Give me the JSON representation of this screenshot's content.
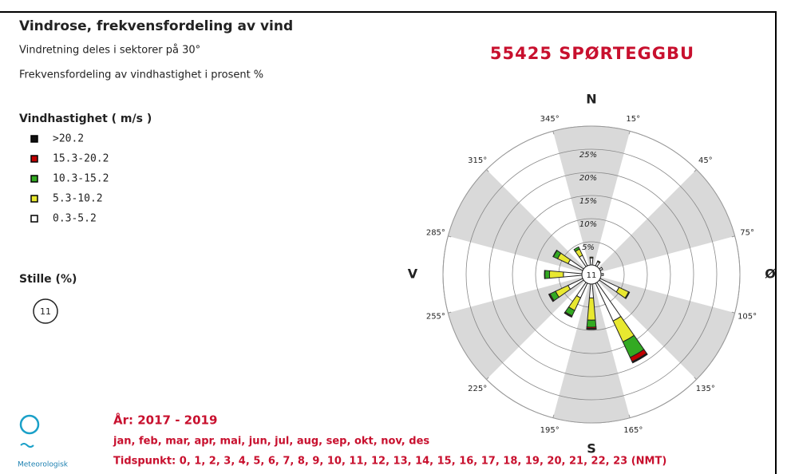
{
  "chart_data": {
    "type": "windrose",
    "title": "Vindrose, frekvensfordeling av vind",
    "subtitle": [
      "Vindretning deles i sektorer på 30°",
      "Frekvensfordeling av vindhastighet i prosent %"
    ],
    "station": "55425 SPØRTEGGBU",
    "legend_title": "Vindhastighet ( m/s )",
    "calm_label": "Stille (%)",
    "calm": 11,
    "period": "År: 2017 - 2019",
    "months": "jan, feb, mar, apr, mai, jun, jul, aug, sep, okt, nov, des",
    "hours": "Tidspunkt: 0, 1, 2, 3, 4, 5, 6, 7, 8, 9, 10, 11, 12, 13, 14, 15, 16, 17, 18, 19, 20, 21, 22, 23 (NMT)",
    "logo_text": "Meteorologisk",
    "x": [
      0,
      30,
      60,
      90,
      120,
      150,
      180,
      210,
      240,
      270,
      300,
      330
    ],
    "series": [
      {
        "name": ">20.2",
        "color": "#111111",
        "values": [
          0,
          0,
          0,
          0,
          0,
          0.3,
          0.2,
          0.1,
          0.1,
          0,
          0,
          0
        ]
      },
      {
        "name": "15.3-20.2",
        "color": "#c00000",
        "values": [
          0,
          0,
          0,
          0,
          0,
          1,
          0.3,
          0.2,
          0.2,
          0.1,
          0.1,
          0
        ]
      },
      {
        "name": "10.3-15.2",
        "color": "#33aa22",
        "values": [
          0,
          0,
          0,
          0,
          0.2,
          3.7,
          1.5,
          1.3,
          1.3,
          1,
          1,
          0.5
        ]
      },
      {
        "name": "5.3-10.2",
        "color": "#e8e830",
        "values": [
          0.2,
          0.2,
          0,
          0,
          2.3,
          5,
          4.8,
          3,
          3,
          3,
          2.5,
          1.5
        ]
      },
      {
        "name": "0.3-5.2",
        "color": "#ffffff",
        "values": [
          1.5,
          1,
          0.6,
          0.5,
          4.5,
          9,
          3,
          3.5,
          3.5,
          4,
          3.5,
          2.5
        ]
      }
    ],
    "rlim": [
      0,
      30
    ],
    "rticks": [
      {
        "value": 5,
        "label": "5%"
      },
      {
        "value": 10,
        "label": "10%"
      },
      {
        "value": 15,
        "label": "15%"
      },
      {
        "value": 20,
        "label": "20%"
      },
      {
        "value": 25,
        "label": "25%"
      }
    ],
    "direction_ticks": [
      {
        "value": 15,
        "label": "15°"
      },
      {
        "value": 45,
        "label": "45°"
      },
      {
        "value": 75,
        "label": "75°"
      },
      {
        "value": 105,
        "label": "105°"
      },
      {
        "value": 135,
        "label": "135°"
      },
      {
        "value": 165,
        "label": "165°"
      },
      {
        "value": 195,
        "label": "195°"
      },
      {
        "value": 225,
        "label": "225°"
      },
      {
        "value": 255,
        "label": "255°"
      },
      {
        "value": 285,
        "label": "285°"
      },
      {
        "value": 315,
        "label": "315°"
      },
      {
        "value": 345,
        "label": "345°"
      }
    ],
    "compass": [
      {
        "value": 0,
        "label": "N"
      },
      {
        "value": 90,
        "label": "Ø"
      },
      {
        "value": 180,
        "label": "S"
      },
      {
        "value": 270,
        "label": "V"
      }
    ]
  }
}
